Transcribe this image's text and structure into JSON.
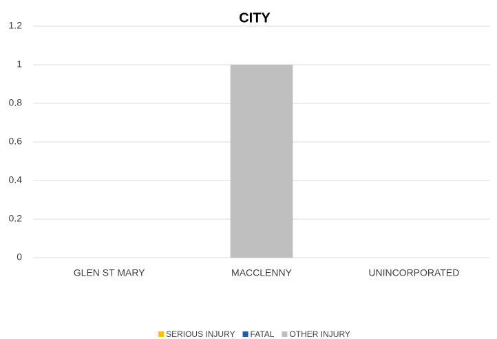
{
  "chart_data": {
    "type": "bar",
    "stacked": true,
    "title": "CITY",
    "categories": [
      "GLEN ST MARY",
      "MACCLENNY",
      "UNINCORPORATED"
    ],
    "series": [
      {
        "name": "SERIOUS INJURY",
        "color": "#ffc000",
        "values": [
          0,
          0,
          0
        ]
      },
      {
        "name": "FATAL",
        "color": "#1f5fa8",
        "values": [
          0,
          0,
          0
        ]
      },
      {
        "name": "OTHER INJURY",
        "color": "#bfbfbf",
        "values": [
          0,
          1,
          0
        ]
      }
    ],
    "ylim": [
      0,
      1.2
    ],
    "yticks": [
      0,
      0.2,
      0.4,
      0.6,
      0.8,
      1,
      1.2
    ],
    "grid": true,
    "legend": "bottom"
  }
}
